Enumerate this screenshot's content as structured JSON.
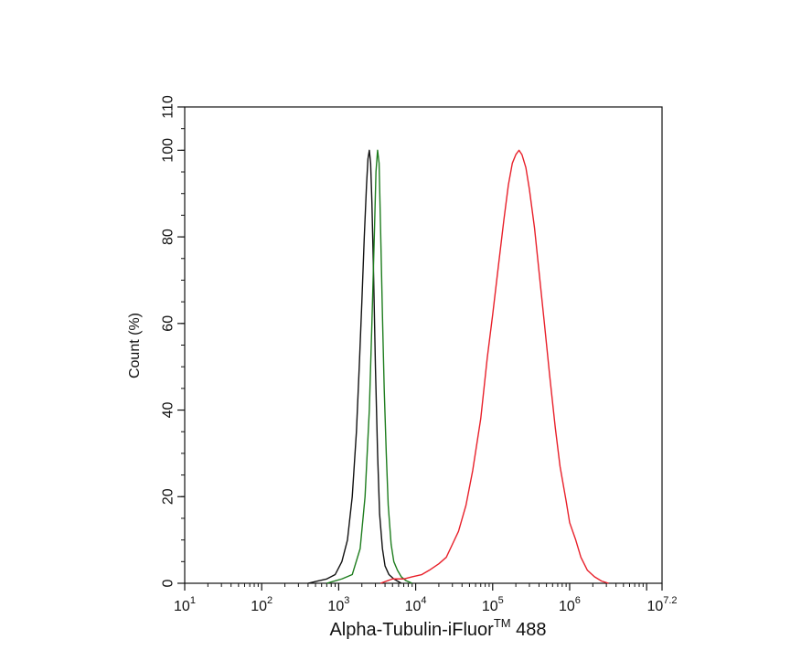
{
  "chart_data": {
    "type": "line",
    "title": "",
    "xlabel": "Alpha-Tubulin-iFluor",
    "xlabel_superscript": "TM",
    "xlabel_suffix": " 488",
    "ylabel": "Count  (%)",
    "x_scale": "log",
    "xlim": [
      10,
      15848932
    ],
    "ylim": [
      0,
      110
    ],
    "y_ticks": [
      0,
      20,
      40,
      60,
      80,
      100,
      110
    ],
    "x_ticks": [
      {
        "value": 10,
        "base": "10",
        "exp": "1"
      },
      {
        "value": 100,
        "base": "10",
        "exp": "2"
      },
      {
        "value": 1000,
        "base": "10",
        "exp": "3"
      },
      {
        "value": 10000,
        "base": "10",
        "exp": "4"
      },
      {
        "value": 100000,
        "base": "10",
        "exp": "5"
      },
      {
        "value": 1000000,
        "base": "10",
        "exp": "6"
      },
      {
        "value": 15848932,
        "base": "10",
        "exp": "7.2"
      }
    ],
    "grid": false,
    "series": [
      {
        "color": "#111111",
        "points": [
          [
            400,
            0
          ],
          [
            700,
            1
          ],
          [
            900,
            2
          ],
          [
            1100,
            5
          ],
          [
            1300,
            10
          ],
          [
            1500,
            20
          ],
          [
            1700,
            35
          ],
          [
            1850,
            50
          ],
          [
            2000,
            65
          ],
          [
            2150,
            80
          ],
          [
            2300,
            92
          ],
          [
            2400,
            98
          ],
          [
            2500,
            100
          ],
          [
            2600,
            97
          ],
          [
            2700,
            88
          ],
          [
            2850,
            70
          ],
          [
            3000,
            50
          ],
          [
            3200,
            30
          ],
          [
            3400,
            16
          ],
          [
            3700,
            8
          ],
          [
            4000,
            4
          ],
          [
            4500,
            2
          ],
          [
            5200,
            1
          ],
          [
            6500,
            0
          ]
        ]
      },
      {
        "color": "#1e7d1e",
        "points": [
          [
            700,
            0
          ],
          [
            1100,
            1
          ],
          [
            1500,
            2
          ],
          [
            1900,
            8
          ],
          [
            2200,
            20
          ],
          [
            2500,
            40
          ],
          [
            2700,
            60
          ],
          [
            2900,
            80
          ],
          [
            3050,
            95
          ],
          [
            3200,
            100
          ],
          [
            3350,
            97
          ],
          [
            3500,
            82
          ],
          [
            3700,
            62
          ],
          [
            3900,
            45
          ],
          [
            4150,
            30
          ],
          [
            4400,
            18
          ],
          [
            4800,
            9
          ],
          [
            5200,
            5
          ],
          [
            5800,
            3
          ],
          [
            6500,
            1.5
          ],
          [
            7500,
            0.6
          ],
          [
            9000,
            0
          ]
        ]
      },
      {
        "color": "#e8202a",
        "points": [
          [
            3500,
            0
          ],
          [
            5000,
            1
          ],
          [
            7000,
            1
          ],
          [
            9000,
            1.5
          ],
          [
            12000,
            2
          ],
          [
            15000,
            3
          ],
          [
            20000,
            4.5
          ],
          [
            25000,
            6
          ],
          [
            30000,
            9
          ],
          [
            36000,
            12
          ],
          [
            45000,
            18
          ],
          [
            55000,
            26
          ],
          [
            70000,
            38
          ],
          [
            85000,
            52
          ],
          [
            100000,
            62
          ],
          [
            120000,
            74
          ],
          [
            140000,
            84
          ],
          [
            160000,
            92
          ],
          [
            180000,
            97
          ],
          [
            200000,
            99
          ],
          [
            220000,
            100
          ],
          [
            240000,
            99
          ],
          [
            270000,
            96
          ],
          [
            300000,
            91
          ],
          [
            350000,
            82
          ],
          [
            400000,
            72
          ],
          [
            470000,
            60
          ],
          [
            550000,
            48
          ],
          [
            650000,
            36
          ],
          [
            750000,
            27
          ],
          [
            900000,
            19
          ],
          [
            1000000,
            14
          ],
          [
            1200000,
            10
          ],
          [
            1400000,
            6
          ],
          [
            1700000,
            3
          ],
          [
            2100000,
            1.5
          ],
          [
            2600000,
            0.5
          ],
          [
            3200000,
            0
          ]
        ]
      }
    ]
  }
}
